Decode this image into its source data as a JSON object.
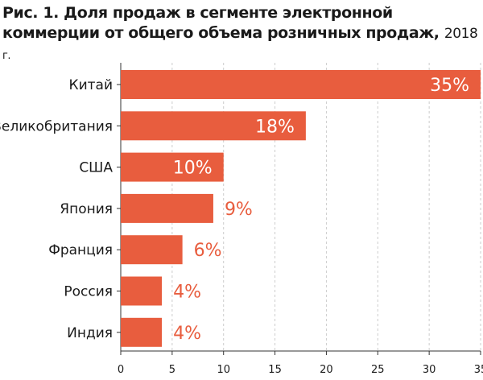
{
  "header": {
    "title_bold": "Рис. 1. Доля продаж в сегменте электронной коммерции от общего объема розничных продаж,",
    "title_year": "2018",
    "title_suffix": "г."
  },
  "colors": {
    "bar": "#e85d3e",
    "label_outside": "#e85d3e",
    "label_inside": "#ffffff",
    "grid": "#cccccc",
    "axis": "#333333"
  },
  "chart_data": {
    "type": "bar",
    "orientation": "horizontal",
    "categories": [
      "Китай",
      "Великобритания",
      "США",
      "Япония",
      "Франция",
      "Россия",
      "Индия"
    ],
    "values": [
      35,
      18,
      10,
      9,
      6,
      4,
      4
    ],
    "value_labels": [
      "35%",
      "18%",
      "10%",
      "9%",
      "6%",
      "4%",
      "4%"
    ],
    "xlim": [
      0,
      35
    ],
    "xticks": [
      0,
      5,
      10,
      15,
      20,
      25,
      30,
      35
    ],
    "grid": "vertical-dashed"
  }
}
